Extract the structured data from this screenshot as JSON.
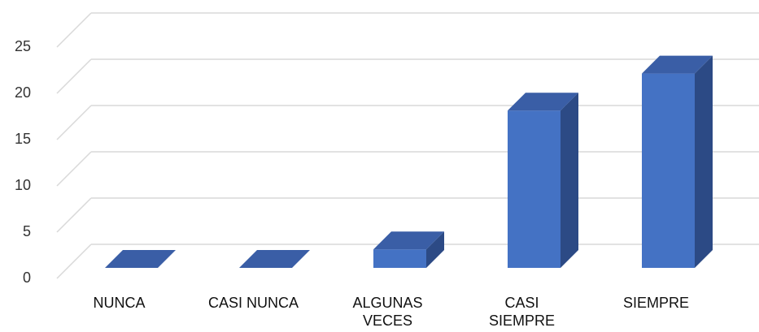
{
  "chart_data": {
    "type": "bar3d",
    "categories": [
      "NUNCA",
      "CASI NUNCA",
      "ALGUNAS VECES",
      "CASI SIEMPRE",
      "SIEMPRE"
    ],
    "values": [
      0,
      0,
      2,
      17,
      21
    ],
    "color": "#4472c4",
    "ylim": [
      0,
      25
    ],
    "yticks": [
      0,
      5,
      10,
      15,
      20,
      25
    ],
    "grid": true
  }
}
